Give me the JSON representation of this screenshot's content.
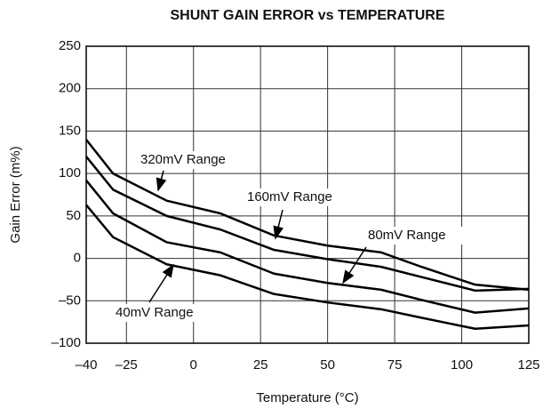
{
  "chart_data": {
    "type": "line",
    "title": "SHUNT GAIN ERROR vs TEMPERATURE",
    "x_label": "Temperature (°C)",
    "y_label": "Gain Error (m%)",
    "x": [
      -40,
      -30,
      -10,
      10,
      30,
      50,
      70,
      85,
      105,
      125
    ],
    "series": [
      {
        "name": "320mV Range",
        "color": "#000000",
        "values": [
          140,
          100,
          68,
          53,
          27,
          15,
          7,
          -10,
          -31,
          -37
        ]
      },
      {
        "name": "160mV Range",
        "color": "#000000",
        "values": [
          120,
          81,
          50,
          34,
          10,
          -1,
          -10,
          -22,
          -38,
          -36
        ]
      },
      {
        "name": "80mV Range",
        "color": "#000000",
        "values": [
          92,
          53,
          19,
          7,
          -18,
          -29,
          -37,
          -49,
          -64,
          -59
        ]
      },
      {
        "name": "40mV Range",
        "color": "#000000",
        "values": [
          63,
          25,
          -7,
          -20,
          -42,
          -52,
          -60,
          -70,
          -83,
          -79
        ]
      }
    ],
    "xlim": [
      -40,
      125
    ],
    "xticks": [
      {
        "value": -40,
        "label": "–40"
      },
      {
        "value": -25,
        "label": "–25"
      },
      0,
      25,
      50,
      75,
      100,
      125
    ],
    "ylim": [
      -100,
      250
    ],
    "yticks": [
      {
        "value": -100,
        "label": "–100"
      },
      {
        "value": -50,
        "label": "–50"
      },
      0,
      50,
      100,
      150,
      200,
      250
    ],
    "grid": true
  }
}
